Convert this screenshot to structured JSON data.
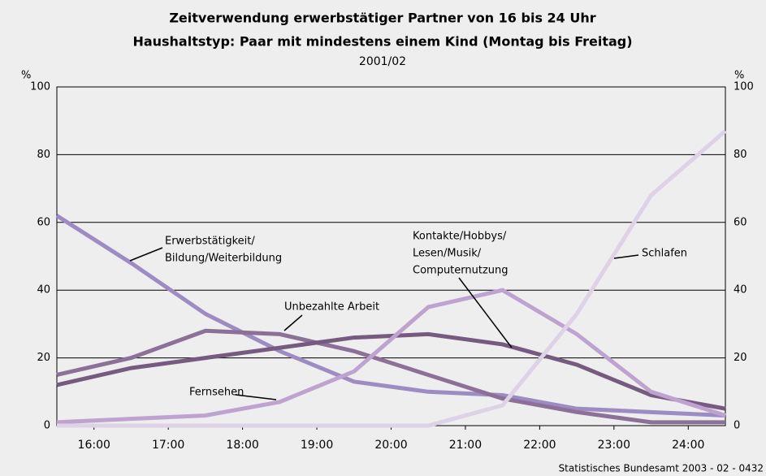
{
  "chart_data": {
    "type": "line",
    "title": "Zeitverwendung erwerbstätiger Partner von 16 bis 24 Uhr",
    "subtitle": "Haushaltstyp: Paar mit mindestens einem Kind (Montag bis Freitag)",
    "period": "2001/02",
    "y_unit": "%",
    "source": "Statistisches Bundesamt 2003 - 02 - 0432",
    "x": [
      15.5,
      16.5,
      17.5,
      18.5,
      19.5,
      20.5,
      21.5,
      22.5,
      23.5,
      24.5
    ],
    "xlim": [
      15.5,
      24.5
    ],
    "xticks": [
      {
        "value": 16,
        "label": "16:00"
      },
      {
        "value": 17,
        "label": "17:00"
      },
      {
        "value": 18,
        "label": "18:00"
      },
      {
        "value": 19,
        "label": "19:00"
      },
      {
        "value": 20,
        "label": "20:00"
      },
      {
        "value": 21,
        "label": "21:00"
      },
      {
        "value": 22,
        "label": "22:00"
      },
      {
        "value": 23,
        "label": "23:00"
      },
      {
        "value": 24,
        "label": "24:00"
      }
    ],
    "ylim": [
      0,
      100
    ],
    "yticks": [
      0,
      20,
      40,
      60,
      80,
      100
    ],
    "y2lim": [
      0,
      100
    ],
    "y2ticks": [
      0,
      20,
      40,
      60,
      80,
      100
    ],
    "grid": true,
    "series": [
      {
        "name": [
          "Erwerbstätigkeit/",
          "Bildung/Weiterbildung"
        ],
        "color": "#9d8cc3",
        "values": [
          62,
          48,
          33,
          22,
          13,
          10,
          9,
          5,
          4,
          3
        ]
      },
      {
        "name": [
          "Unbezahlte Arbeit"
        ],
        "color": "#8d7098",
        "values": [
          15,
          20,
          28,
          27,
          22,
          15,
          8,
          4,
          1,
          1
        ]
      },
      {
        "name": [
          "Kontakte/Hobbys/",
          "Lesen/Musik/",
          "Computernutzung"
        ],
        "color": "#765a80",
        "values": [
          12,
          17,
          20,
          23,
          26,
          27,
          24,
          18,
          9,
          5
        ]
      },
      {
        "name": [
          "Fernsehen"
        ],
        "color": "#bea2cf",
        "values": [
          1,
          2,
          3,
          7,
          16,
          35,
          40,
          27,
          10,
          3
        ]
      },
      {
        "name": [
          "Schlafen"
        ],
        "color": "#ddd2e6",
        "values": [
          0,
          0,
          0,
          0,
          0,
          0,
          6,
          33,
          68,
          87
        ]
      }
    ]
  }
}
